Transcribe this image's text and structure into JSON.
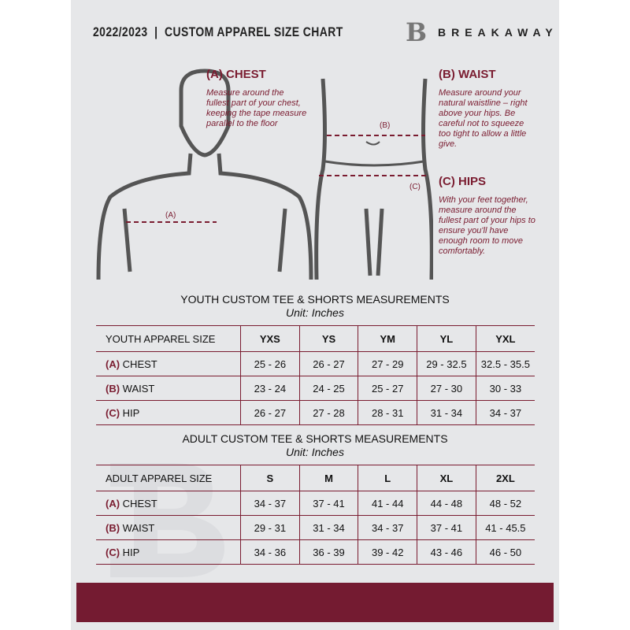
{
  "header": {
    "title": "2022/2023  |  CUSTOM APPAREL SIZE CHART",
    "brand": "BREAKAWAY",
    "logo_letter": "B"
  },
  "measures": {
    "chest": {
      "heading": "(A) CHEST",
      "text": "Measure around the fullest part of your chest, keeping the tape measure parallel to the floor",
      "marker": "(A)"
    },
    "waist": {
      "heading": "(B) WAIST",
      "text": "Measure around your natural waistline – right above your hips. Be careful not to squeeze too tight to allow a little give.",
      "marker": "(B)"
    },
    "hips": {
      "heading": "(C) HIPS",
      "text": "With your feet together, measure around the fullest part of your hips to ensure you'll have enough room to move comfortably.",
      "marker": "(C)"
    }
  },
  "accent": "#7a1c30",
  "youth": {
    "title": "YOUTH CUSTOM TEE & SHORTS MEASUREMENTS",
    "unit": "Unit: Inches",
    "header": [
      "YOUTH APPAREL SIZE",
      "YXS",
      "YS",
      "YM",
      "YL",
      "YXL"
    ],
    "rows": [
      {
        "letter": "(A)",
        "name": "CHEST",
        "values": [
          "25 - 26",
          "26 - 27",
          "27 - 29",
          "29 - 32.5",
          "32.5 - 35.5"
        ]
      },
      {
        "letter": "(B)",
        "name": "WAIST",
        "values": [
          "23 - 24",
          "24 - 25",
          "25 - 27",
          "27 - 30",
          "30 - 33"
        ]
      },
      {
        "letter": "(C)",
        "name": "HIP",
        "values": [
          "26 - 27",
          "27 - 28",
          "28 - 31",
          "31 - 34",
          "34 - 37"
        ]
      }
    ]
  },
  "adult": {
    "title": "ADULT CUSTOM TEE & SHORTS MEASUREMENTS",
    "unit": "Unit: Inches",
    "header": [
      "ADULT APPAREL SIZE",
      "S",
      "M",
      "L",
      "XL",
      "2XL"
    ],
    "rows": [
      {
        "letter": "(A)",
        "name": "CHEST",
        "values": [
          "34 - 37",
          "37 - 41",
          "41 - 44",
          "44 - 48",
          "48 - 52"
        ]
      },
      {
        "letter": "(B)",
        "name": "WAIST",
        "values": [
          "29 - 31",
          "31 - 34",
          "34 - 37",
          "37 - 41",
          "41 - 45.5"
        ]
      },
      {
        "letter": "(C)",
        "name": "HIP",
        "values": [
          "34 - 36",
          "36 - 39",
          "39 - 42",
          "43 - 46",
          "46 - 50"
        ]
      }
    ]
  }
}
